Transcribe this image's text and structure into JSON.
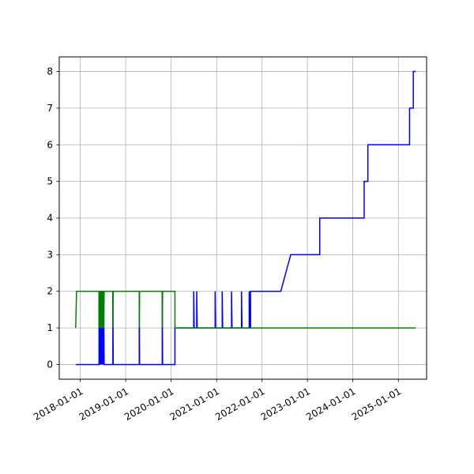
{
  "chart_data": {
    "type": "line",
    "title": "",
    "xlabel": "",
    "ylabel": "",
    "grid": true,
    "legend": "none",
    "x_type": "date",
    "xlim": [
      "2017-07-16",
      "2025-08-16"
    ],
    "ylim": [
      -0.4,
      8.4
    ],
    "x_ticks": [
      "2018-01-01",
      "2019-01-01",
      "2020-01-01",
      "2021-01-01",
      "2022-01-01",
      "2023-01-01",
      "2024-01-01",
      "2025-01-01"
    ],
    "y_ticks": [
      0,
      1,
      2,
      3,
      4,
      5,
      6,
      7,
      8
    ],
    "series": [
      {
        "color": "#0000ff",
        "points": [
          [
            "2017-11-25",
            0
          ],
          [
            "2018-06-01",
            0
          ],
          [
            "2018-06-01",
            2
          ],
          [
            "2018-06-04",
            0
          ],
          [
            "2018-06-10",
            2
          ],
          [
            "2018-06-13",
            0
          ],
          [
            "2018-06-19",
            2
          ],
          [
            "2018-06-22",
            0
          ],
          [
            "2018-06-28",
            2
          ],
          [
            "2018-07-02",
            0
          ],
          [
            "2018-07-08",
            2
          ],
          [
            "2018-07-12",
            0
          ],
          [
            "2018-09-20",
            0
          ],
          [
            "2018-09-20",
            2
          ],
          [
            "2018-09-23",
            0
          ],
          [
            "2019-04-20",
            0
          ],
          [
            "2019-04-20",
            2
          ],
          [
            "2019-04-23",
            0
          ],
          [
            "2019-10-22",
            0
          ],
          [
            "2019-10-22",
            2
          ],
          [
            "2019-10-25",
            0
          ],
          [
            "2020-02-01",
            0
          ],
          [
            "2020-02-01",
            1
          ],
          [
            "2020-07-01",
            1
          ],
          [
            "2020-07-01",
            2
          ],
          [
            "2020-07-05",
            1
          ],
          [
            "2020-07-25",
            1
          ],
          [
            "2020-07-25",
            2
          ],
          [
            "2020-07-29",
            1
          ],
          [
            "2020-12-20",
            1
          ],
          [
            "2020-12-20",
            2
          ],
          [
            "2020-12-24",
            1
          ],
          [
            "2021-02-15",
            1
          ],
          [
            "2021-02-15",
            2
          ],
          [
            "2021-02-19",
            1
          ],
          [
            "2021-05-01",
            1
          ],
          [
            "2021-05-01",
            2
          ],
          [
            "2021-05-05",
            1
          ],
          [
            "2021-07-20",
            1
          ],
          [
            "2021-07-20",
            2
          ],
          [
            "2021-07-24",
            1
          ],
          [
            "2021-09-20",
            1
          ],
          [
            "2021-09-20",
            2
          ],
          [
            "2021-09-24",
            1
          ],
          [
            "2021-10-01",
            1
          ],
          [
            "2021-10-01",
            2
          ],
          [
            "2022-06-01",
            2
          ],
          [
            "2022-08-20",
            3
          ],
          [
            "2023-04-10",
            3
          ],
          [
            "2023-04-10",
            4
          ],
          [
            "2024-04-01",
            4
          ],
          [
            "2024-04-01",
            5
          ],
          [
            "2024-05-01",
            5
          ],
          [
            "2024-05-01",
            6
          ],
          [
            "2025-04-01",
            6
          ],
          [
            "2025-04-01",
            7
          ],
          [
            "2025-05-01",
            7
          ],
          [
            "2025-05-01",
            8
          ],
          [
            "2025-05-20",
            8
          ]
        ]
      },
      {
        "color": "#008000",
        "points": [
          [
            "2017-11-25",
            1
          ],
          [
            "2017-12-02",
            2
          ],
          [
            "2018-06-01",
            2
          ],
          [
            "2018-06-01",
            1
          ],
          [
            "2018-06-04",
            2
          ],
          [
            "2018-06-10",
            2
          ],
          [
            "2018-06-10",
            1
          ],
          [
            "2018-06-13",
            2
          ],
          [
            "2018-06-19",
            2
          ],
          [
            "2018-06-19",
            1
          ],
          [
            "2018-06-22",
            2
          ],
          [
            "2018-06-28",
            2
          ],
          [
            "2018-06-28",
            1
          ],
          [
            "2018-07-02",
            2
          ],
          [
            "2018-07-08",
            2
          ],
          [
            "2018-07-08",
            1
          ],
          [
            "2018-07-12",
            2
          ],
          [
            "2018-09-20",
            2
          ],
          [
            "2018-09-20",
            1
          ],
          [
            "2018-09-23",
            2
          ],
          [
            "2019-04-20",
            2
          ],
          [
            "2019-04-20",
            1
          ],
          [
            "2019-04-23",
            2
          ],
          [
            "2019-10-22",
            2
          ],
          [
            "2019-10-22",
            1
          ],
          [
            "2019-10-25",
            2
          ],
          [
            "2020-02-01",
            2
          ],
          [
            "2020-02-01",
            1
          ],
          [
            "2025-05-20",
            1
          ]
        ]
      }
    ]
  }
}
